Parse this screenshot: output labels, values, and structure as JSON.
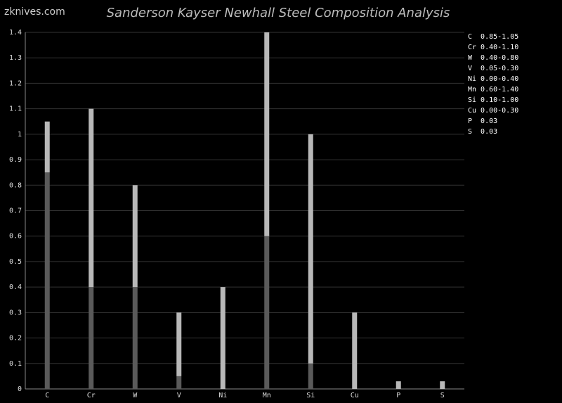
{
  "watermark": "zknives.com",
  "chart_data": {
    "type": "range-bar",
    "title": "Sanderson Kayser Newhall Steel Composition Analysis",
    "categories": [
      "C",
      "Cr",
      "W",
      "V",
      "Ni",
      "Mn",
      "Si",
      "Cu",
      "P",
      "S"
    ],
    "min": [
      0.85,
      0.4,
      0.4,
      0.05,
      0.0,
      0.6,
      0.1,
      0.0,
      null,
      null
    ],
    "max": [
      1.05,
      1.1,
      0.8,
      0.3,
      0.4,
      1.4,
      1.0,
      0.3,
      0.03,
      0.03
    ],
    "min_color": "#5a5a5a",
    "max_color": "#b8b8b8",
    "ylim": [
      0,
      1.4
    ],
    "yticks": [
      0,
      0.1,
      0.2,
      0.3,
      0.4,
      0.5,
      0.6,
      0.7,
      0.8,
      0.9,
      1,
      1.1,
      1.2,
      1.3,
      1.4
    ],
    "grid": true,
    "legend": [
      "C  0.85-1.05",
      "Cr 0.40-1.10",
      "W  0.40-0.80",
      "V  0.05-0.30",
      "Ni 0.00-0.40",
      "Mn 0.60-1.40",
      "Si 0.10-1.00",
      "Cu 0.00-0.30",
      "P  0.03",
      "S  0.03"
    ]
  }
}
